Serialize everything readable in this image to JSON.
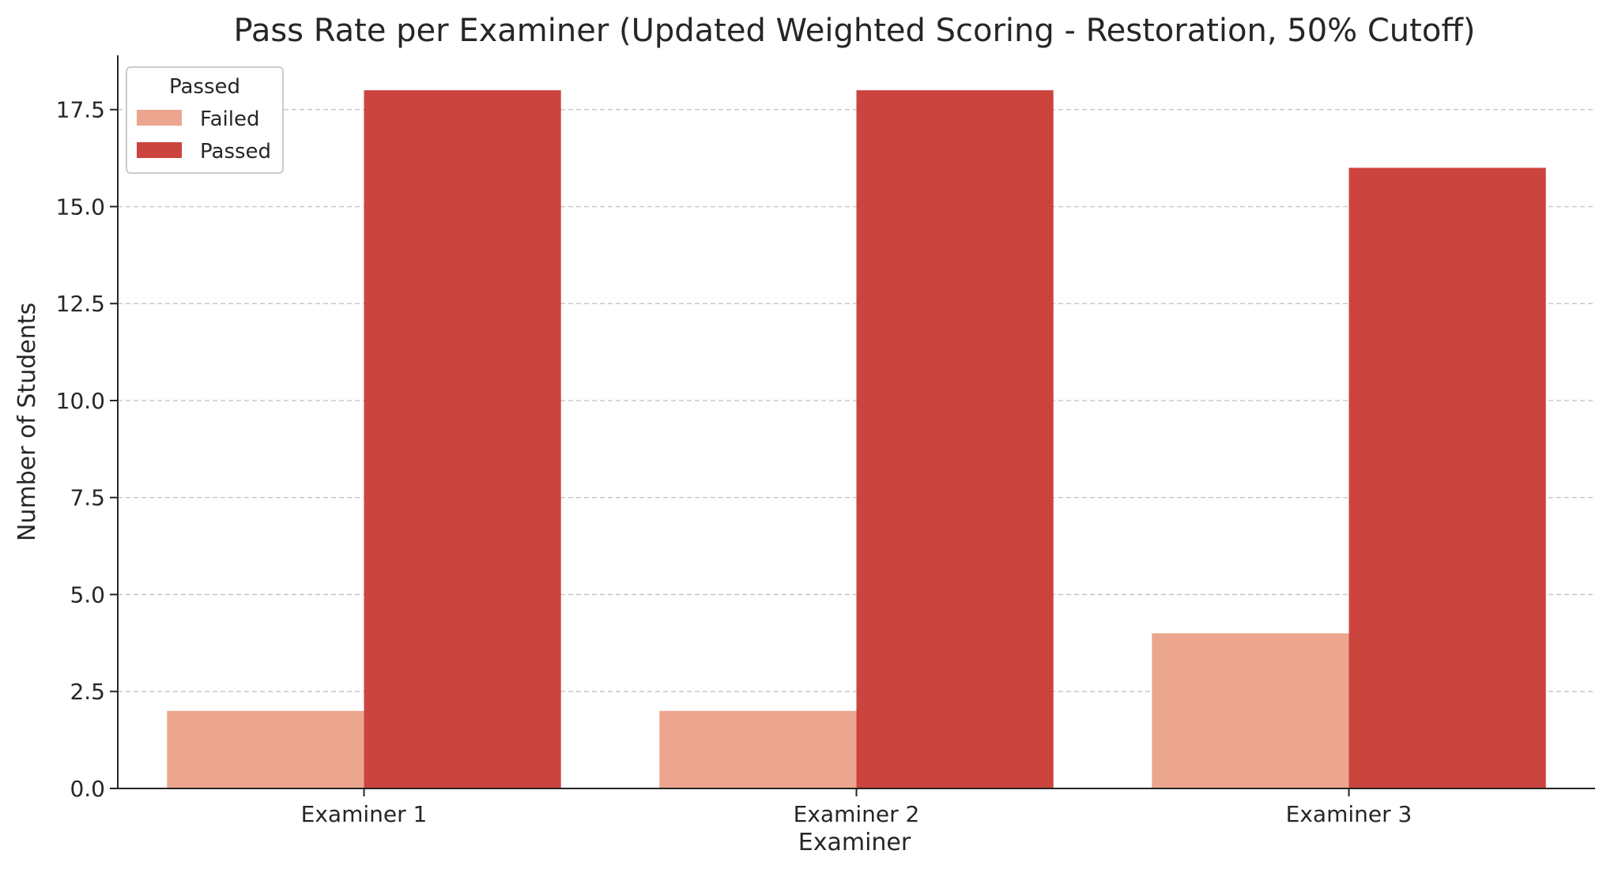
{
  "chart_data": {
    "type": "bar",
    "title": "Pass Rate per Examiner (Updated Weighted Scoring - Restoration, 50% Cutoff)",
    "xlabel": "Examiner",
    "ylabel": "Number of Students",
    "categories": [
      "Examiner 1",
      "Examiner 2",
      "Examiner 3"
    ],
    "series": [
      {
        "name": "Failed",
        "values": [
          2,
          2,
          4
        ],
        "color": "#eca68f"
      },
      {
        "name": "Passed",
        "values": [
          18,
          18,
          16
        ],
        "color": "#cb443e"
      }
    ],
    "ylim": [
      0,
      18.9
    ],
    "yticks": [
      0,
      2.5,
      5,
      7.5,
      10,
      12.5,
      15,
      17.5
    ],
    "ytick_labels": [
      "0.0",
      "2.5",
      "5.0",
      "7.5",
      "10.0",
      "12.5",
      "15.0",
      "17.5"
    ],
    "grid": "y-dashed",
    "legend": {
      "title": "Passed",
      "placement": "top-left"
    }
  }
}
